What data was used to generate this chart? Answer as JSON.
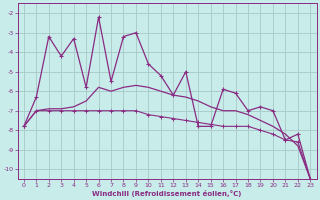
{
  "xlabel": "Windchill (Refroidissement éolien,°C)",
  "background_color": "#c8ecea",
  "line_color": "#892b82",
  "grid_color": "#a8c8c8",
  "x_values": [
    0,
    1,
    2,
    3,
    4,
    5,
    6,
    7,
    8,
    9,
    10,
    11,
    12,
    13,
    14,
    15,
    16,
    17,
    18,
    19,
    20,
    21,
    22,
    23
  ],
  "windchill_values": [
    -7.8,
    -6.3,
    -3.2,
    -4.2,
    -3.3,
    -5.8,
    -2.2,
    -5.5,
    -3.2,
    -3.0,
    -4.6,
    -5.2,
    -6.2,
    -5.0,
    -7.8,
    -7.8,
    -5.9,
    -6.1,
    -7.0,
    -6.8,
    -7.0,
    -8.5,
    -8.2,
    -10.5
  ],
  "temp_values": [
    -7.8,
    -7.0,
    -6.9,
    -6.9,
    -6.8,
    -6.5,
    -5.8,
    -6.0,
    -5.8,
    -5.7,
    -5.8,
    -6.0,
    -6.2,
    -6.3,
    -6.5,
    -6.8,
    -7.0,
    -7.0,
    -7.2,
    -7.5,
    -7.8,
    -8.2,
    -8.8,
    -10.5
  ],
  "flat_values": [
    -7.8,
    -7.0,
    -7.0,
    -7.0,
    -7.0,
    -7.0,
    -7.0,
    -7.0,
    -7.0,
    -7.0,
    -7.2,
    -7.3,
    -7.4,
    -7.5,
    -7.6,
    -7.7,
    -7.8,
    -7.8,
    -7.8,
    -8.0,
    -8.2,
    -8.5,
    -8.6,
    -10.5
  ],
  "ylim": [
    -10.5,
    -1.5
  ],
  "yticks": [
    -10,
    -9,
    -8,
    -7,
    -6,
    -5,
    -4,
    -3,
    -2
  ],
  "xlim": [
    -0.5,
    23.5
  ],
  "xticks": [
    0,
    1,
    2,
    3,
    4,
    5,
    6,
    7,
    8,
    9,
    10,
    11,
    12,
    13,
    14,
    15,
    16,
    17,
    18,
    19,
    20,
    21,
    22,
    23
  ]
}
